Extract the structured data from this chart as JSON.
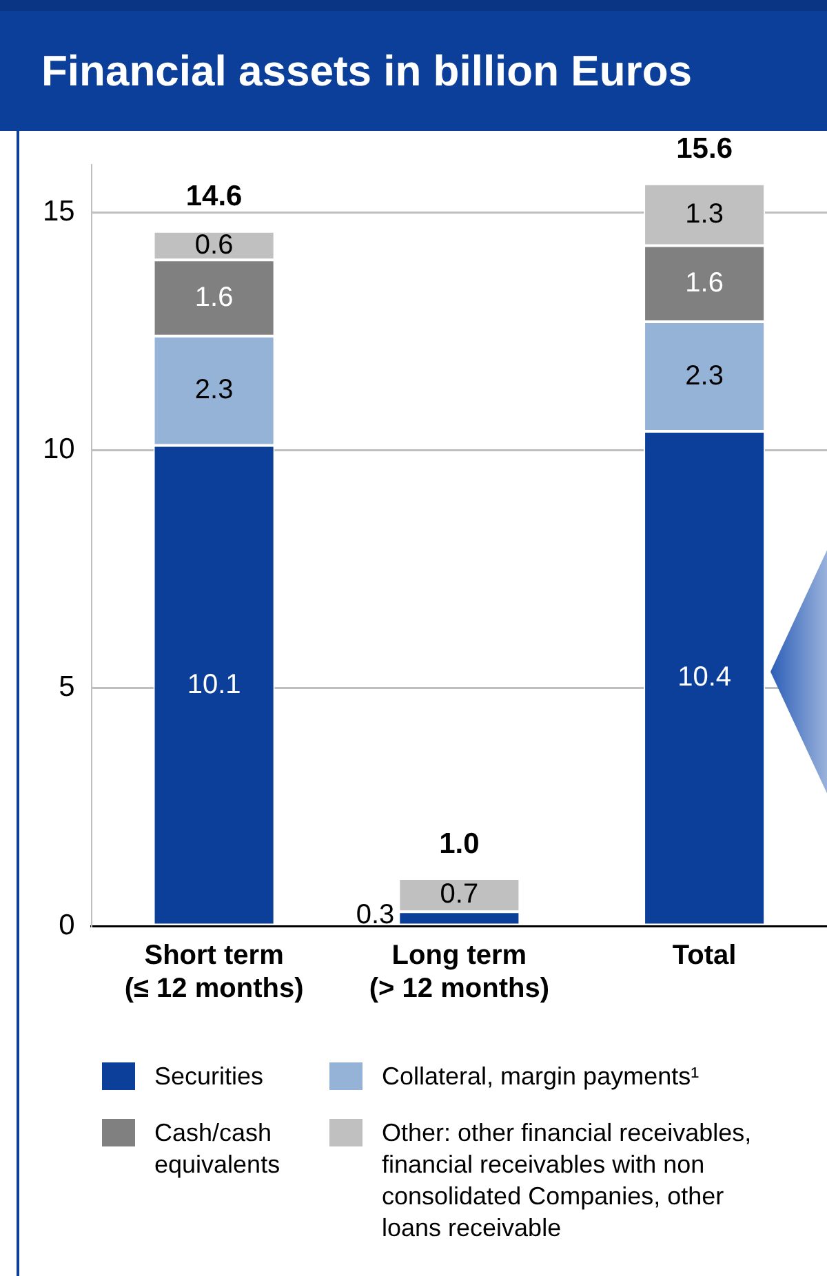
{
  "chart_data": {
    "type": "bar",
    "title": "Financial assets in billion Euros",
    "categories": [
      "Short term\n(≤ 12 months)",
      "Long term\n(> 12 months)",
      "Total"
    ],
    "stacked": true,
    "ylim": [
      0,
      16
    ],
    "yticks": [
      0,
      5,
      10,
      15
    ],
    "grid": "y",
    "legend": "bottom",
    "data_labels": true,
    "totals": [
      "14.6",
      "1.0",
      "15.6"
    ],
    "series": [
      {
        "name": "Securities",
        "color": "#0c3f99",
        "values": [
          10.1,
          0.3,
          10.4
        ]
      },
      {
        "name": "Collateral, margin payments¹",
        "color": "#95b3d7",
        "values": [
          2.3,
          null,
          2.3
        ]
      },
      {
        "name": "Cash/cash equivalents",
        "color": "#808080",
        "values": [
          1.6,
          null,
          1.6
        ]
      },
      {
        "name": "Other: other financial receivables, financial receivables with non consolidated Companies, other loans receivable",
        "color": "#c0c0c0",
        "values": [
          0.6,
          0.7,
          1.3
        ]
      }
    ]
  }
}
